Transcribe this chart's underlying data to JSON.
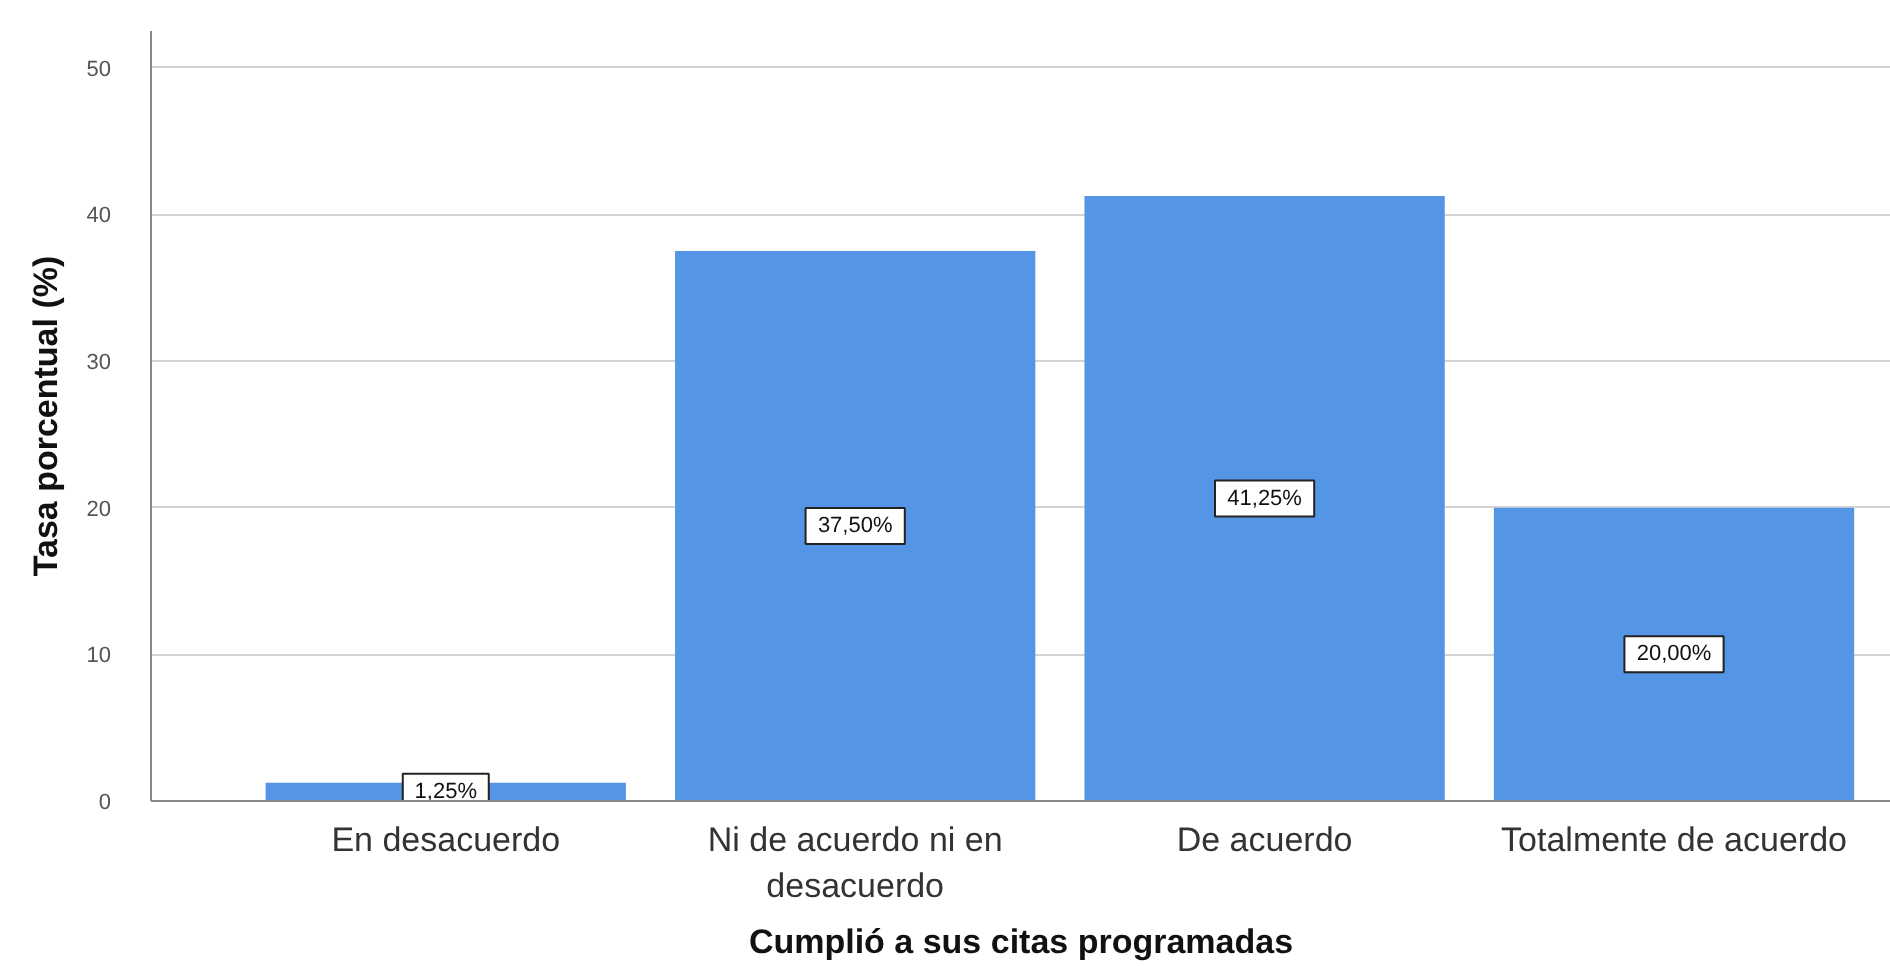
{
  "chart_data": {
    "type": "bar",
    "xlabel": "Cumplió a sus citas programadas",
    "ylabel": "Tasa porcentual (%)",
    "categories": [
      "En desacuerdo",
      "Ni de acuerdo ni en desacuerdo",
      "De acuerdo",
      "Totalmente de acuerdo"
    ],
    "values": [
      1.25,
      37.5,
      41.25,
      20.0
    ],
    "value_labels": [
      "1,25%",
      "37,50%",
      "41,25%",
      "20,00%"
    ],
    "color": "#5595e5",
    "ylim": [
      0,
      52.5
    ],
    "yticks": [
      0,
      10,
      20,
      30,
      40,
      50
    ],
    "grid": "y"
  }
}
